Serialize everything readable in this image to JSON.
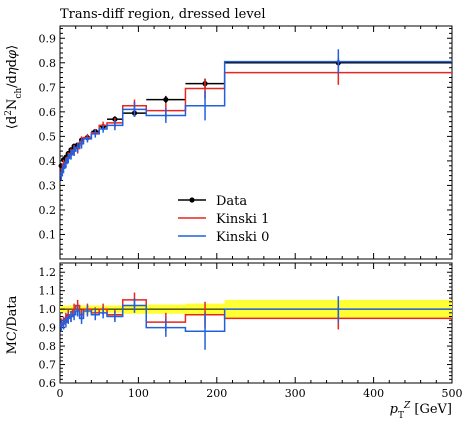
{
  "chart_data": [
    {
      "panel": "main",
      "type": "line",
      "title": "Trans-diff region, dressed level",
      "ylabel": "⟨d²N_ch/dηdφ⟩",
      "xlabel": "",
      "xlim": [
        0,
        500
      ],
      "ylim": [
        0.0,
        0.95
      ],
      "yticks": [
        0.1,
        0.2,
        0.3,
        0.4,
        0.5,
        0.6,
        0.7,
        0.8,
        0.9
      ],
      "xticks": [
        0,
        100,
        200,
        300,
        400,
        500
      ],
      "legend_position": "center",
      "series": [
        {
          "name": "Data",
          "style": "points",
          "color": "#000000",
          "points": [
            {
              "x0": 0,
              "x1": 3,
              "y": 0.38,
              "err": 0.01
            },
            {
              "x0": 3,
              "x1": 6,
              "y": 0.405,
              "err": 0.01
            },
            {
              "x0": 6,
              "x1": 9,
              "y": 0.415,
              "err": 0.01
            },
            {
              "x0": 9,
              "x1": 12,
              "y": 0.43,
              "err": 0.01
            },
            {
              "x0": 12,
              "x1": 16,
              "y": 0.445,
              "err": 0.01
            },
            {
              "x0": 16,
              "x1": 20,
              "y": 0.46,
              "err": 0.01
            },
            {
              "x0": 20,
              "x1": 25,
              "y": 0.465,
              "err": 0.01
            },
            {
              "x0": 25,
              "x1": 30,
              "y": 0.485,
              "err": 0.01
            },
            {
              "x0": 30,
              "x1": 40,
              "y": 0.495,
              "err": 0.01
            },
            {
              "x0": 40,
              "x1": 50,
              "y": 0.52,
              "err": 0.01
            },
            {
              "x0": 50,
              "x1": 60,
              "y": 0.54,
              "err": 0.01
            },
            {
              "x0": 60,
              "x1": 80,
              "y": 0.57,
              "err": 0.012
            },
            {
              "x0": 80,
              "x1": 110,
              "y": 0.595,
              "err": 0.015
            },
            {
              "x0": 110,
              "x1": 160,
              "y": 0.65,
              "err": 0.015
            },
            {
              "x0": 160,
              "x1": 210,
              "y": 0.715,
              "err": 0.02
            },
            {
              "x0": 210,
              "x1": 500,
              "y": 0.8,
              "err": 0.02
            }
          ]
        },
        {
          "name": "Kinski 1",
          "style": "histogram",
          "color": "#e8251e",
          "edges": [
            0,
            3,
            6,
            9,
            12,
            16,
            20,
            25,
            30,
            40,
            50,
            60,
            80,
            110,
            160,
            210,
            500
          ],
          "values": [
            0.35,
            0.385,
            0.395,
            0.415,
            0.43,
            0.445,
            0.45,
            0.48,
            0.495,
            0.515,
            0.545,
            0.555,
            0.625,
            0.605,
            0.695,
            0.76
          ],
          "errors": [
            0.02,
            0.02,
            0.02,
            0.02,
            0.02,
            0.02,
            0.02,
            0.02,
            0.015,
            0.015,
            0.015,
            0.02,
            0.025,
            0.03,
            0.04,
            0.05
          ]
        },
        {
          "name": "Kinski 0",
          "style": "histogram",
          "color": "#2060e0",
          "edges": [
            0,
            3,
            6,
            9,
            12,
            16,
            20,
            25,
            30,
            40,
            50,
            60,
            80,
            110,
            160,
            210,
            500
          ],
          "values": [
            0.34,
            0.37,
            0.39,
            0.41,
            0.425,
            0.44,
            0.455,
            0.47,
            0.49,
            0.51,
            0.53,
            0.545,
            0.61,
            0.585,
            0.625,
            0.805
          ],
          "errors": [
            0.02,
            0.02,
            0.02,
            0.02,
            0.02,
            0.02,
            0.02,
            0.02,
            0.015,
            0.015,
            0.015,
            0.02,
            0.03,
            0.03,
            0.06,
            0.05
          ]
        }
      ]
    },
    {
      "panel": "ratio",
      "type": "line",
      "ylabel": "MC/Data",
      "xlabel": "p_T^Z [GeV]",
      "xlim": [
        0,
        500
      ],
      "ylim": [
        0.6,
        1.25
      ],
      "yticks": [
        0.6,
        0.7,
        0.8,
        0.9,
        1.0,
        1.1,
        1.2
      ],
      "xticks": [
        0,
        100,
        200,
        300,
        400,
        500
      ],
      "band_color": "#ffff33",
      "band": {
        "edges": [
          0,
          3,
          6,
          9,
          12,
          16,
          20,
          25,
          30,
          40,
          50,
          60,
          80,
          110,
          160,
          210,
          500
        ],
        "half_widths": [
          0.02,
          0.02,
          0.02,
          0.02,
          0.02,
          0.02,
          0.02,
          0.02,
          0.02,
          0.02,
          0.02,
          0.02,
          0.025,
          0.025,
          0.03,
          0.05
        ]
      },
      "series": [
        {
          "name": "Kinski 1",
          "color": "#e8251e",
          "edges": [
            0,
            3,
            6,
            9,
            12,
            16,
            20,
            25,
            30,
            40,
            50,
            60,
            80,
            110,
            160,
            210,
            500
          ],
          "values": [
            0.92,
            0.93,
            0.95,
            0.97,
            0.96,
            1.0,
            1.02,
            0.97,
            1.0,
            0.98,
            1.0,
            0.97,
            1.05,
            0.93,
            0.97,
            0.95
          ],
          "errors": [
            0.03,
            0.03,
            0.03,
            0.03,
            0.03,
            0.03,
            0.03,
            0.03,
            0.03,
            0.03,
            0.03,
            0.03,
            0.04,
            0.05,
            0.07,
            0.06
          ]
        },
        {
          "name": "Kinski 0",
          "color": "#2060e0",
          "edges": [
            0,
            3,
            6,
            9,
            12,
            16,
            20,
            25,
            30,
            40,
            50,
            60,
            80,
            110,
            160,
            210,
            500
          ],
          "values": [
            0.91,
            0.92,
            0.93,
            0.95,
            0.96,
            0.97,
            0.99,
            0.95,
            0.99,
            0.97,
            0.98,
            0.96,
            1.02,
            0.9,
            0.88,
            1.0
          ],
          "errors": [
            0.03,
            0.03,
            0.03,
            0.03,
            0.03,
            0.03,
            0.03,
            0.03,
            0.03,
            0.03,
            0.03,
            0.03,
            0.04,
            0.05,
            0.1,
            0.07
          ]
        }
      ]
    }
  ]
}
